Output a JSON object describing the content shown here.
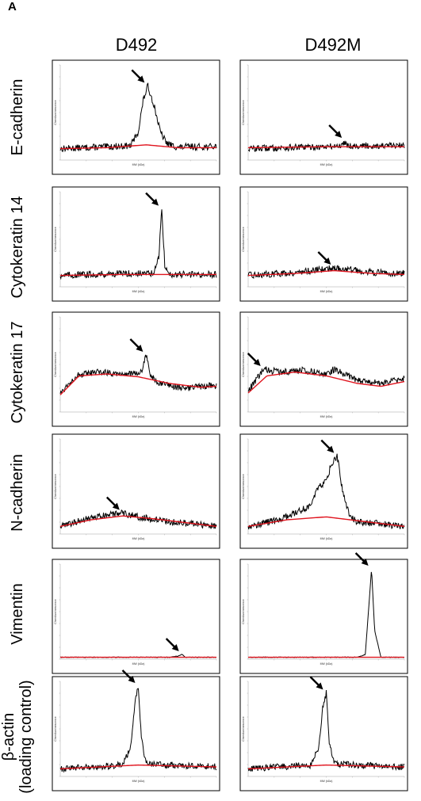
{
  "panel_label": "A",
  "columns": [
    "D492",
    "D492M"
  ],
  "rows": [
    {
      "label": "E-cadherin"
    },
    {
      "label": "Cytokeratin 14"
    },
    {
      "label": "Cytokeratin 17"
    },
    {
      "label": "N-cadherin"
    },
    {
      "label": "Vimentin"
    },
    {
      "label": "β-actin\n(loading control)"
    }
  ],
  "colors": {
    "trace": "#000000",
    "baseline": "#e0141e",
    "frame": "#000000"
  },
  "chart_data": [
    {
      "type": "line",
      "row": "E-cadherin",
      "column": "D492",
      "xlabel": "MW (kDa)",
      "ylabel": "Chemiluminescence",
      "series": [
        {
          "x": [
            0,
            0.3,
            0.45,
            0.5,
            0.53,
            0.56,
            0.6,
            0.64,
            0.68,
            0.72,
            0.76,
            0.8,
            1.0
          ],
          "values": [
            0.12,
            0.14,
            0.15,
            0.3,
            0.62,
            0.78,
            0.58,
            0.3,
            0.18,
            0.15,
            0.13,
            0.14,
            0.14
          ]
        },
        {
          "x": [
            0,
            0.3,
            0.55,
            0.75,
            1.0
          ],
          "values": [
            0.12,
            0.13,
            0.16,
            0.13,
            0.13
          ]
        }
      ],
      "annotations": [
        "arrow at peak"
      ]
    },
    {
      "type": "line",
      "row": "E-cadherin",
      "column": "D492M",
      "xlabel": "MW (kDa)",
      "ylabel": "Chemiluminescence",
      "series": [
        {
          "x": [
            0,
            0.5,
            0.6,
            0.62,
            0.64,
            1.0
          ],
          "values": [
            0.12,
            0.14,
            0.15,
            0.2,
            0.15,
            0.15
          ]
        },
        {
          "x": [
            0,
            0.5,
            1.0
          ],
          "values": [
            0.13,
            0.14,
            0.14
          ]
        }
      ],
      "annotations": [
        "arrow"
      ]
    },
    {
      "type": "line",
      "row": "Cytokeratin 14",
      "column": "D492",
      "xlabel": "MW (kDa)",
      "ylabel": "Chemiluminescence",
      "series": [
        {
          "x": [
            0,
            0.4,
            0.6,
            0.63,
            0.65,
            0.67,
            0.7,
            1.0
          ],
          "values": [
            0.12,
            0.14,
            0.14,
            0.3,
            0.82,
            0.2,
            0.13,
            0.13
          ]
        },
        {
          "x": [
            0,
            0.4,
            1.0
          ],
          "values": [
            0.12,
            0.13,
            0.13
          ]
        }
      ],
      "annotations": [
        "arrow at peak"
      ]
    },
    {
      "type": "line",
      "row": "Cytokeratin 14",
      "column": "D492M",
      "xlabel": "MW (kDa)",
      "ylabel": "Chemiluminescence",
      "series": [
        {
          "x": [
            0,
            0.3,
            0.55,
            0.8,
            1.0
          ],
          "values": [
            0.12,
            0.15,
            0.2,
            0.15,
            0.14
          ]
        },
        {
          "x": [
            0,
            0.3,
            0.55,
            0.8,
            1.0
          ],
          "values": [
            0.12,
            0.14,
            0.17,
            0.14,
            0.13
          ]
        }
      ],
      "annotations": [
        "arrow"
      ]
    },
    {
      "type": "line",
      "row": "Cytokeratin 17",
      "column": "D492",
      "xlabel": "MW (kDa)",
      "ylabel": "Chemiluminescence",
      "series": [
        {
          "x": [
            0,
            0.1,
            0.25,
            0.45,
            0.52,
            0.55,
            0.58,
            0.62,
            0.8,
            1.0
          ],
          "values": [
            0.2,
            0.38,
            0.42,
            0.4,
            0.42,
            0.6,
            0.38,
            0.3,
            0.25,
            0.28
          ]
        },
        {
          "x": [
            0,
            0.12,
            0.3,
            0.5,
            0.7,
            0.9,
            1.0
          ],
          "values": [
            0.18,
            0.38,
            0.4,
            0.37,
            0.3,
            0.26,
            0.27
          ]
        }
      ],
      "annotations": [
        "arrow at peak"
      ]
    },
    {
      "type": "line",
      "row": "Cytokeratin 17",
      "column": "D492M",
      "xlabel": "MW (kDa)",
      "ylabel": "Chemiluminescence",
      "series": [
        {
          "x": [
            0,
            0.1,
            0.2,
            0.35,
            0.5,
            0.55,
            0.7,
            0.85,
            1.0
          ],
          "values": [
            0.22,
            0.45,
            0.42,
            0.44,
            0.4,
            0.45,
            0.33,
            0.3,
            0.35
          ]
        },
        {
          "x": [
            0,
            0.12,
            0.3,
            0.5,
            0.7,
            0.85,
            1.0
          ],
          "values": [
            0.2,
            0.38,
            0.42,
            0.38,
            0.3,
            0.27,
            0.32
          ]
        }
      ],
      "annotations": [
        "arrow"
      ]
    },
    {
      "type": "line",
      "row": "N-cadherin",
      "column": "D492",
      "xlabel": "MW (kDa)",
      "ylabel": "Chemiluminescence",
      "series": [
        {
          "x": [
            0,
            0.15,
            0.3,
            0.4,
            0.5,
            0.7,
            1.0
          ],
          "values": [
            0.08,
            0.15,
            0.2,
            0.22,
            0.18,
            0.13,
            0.08
          ]
        },
        {
          "x": [
            0,
            0.2,
            0.4,
            0.6,
            0.8,
            1.0
          ],
          "values": [
            0.08,
            0.15,
            0.19,
            0.16,
            0.12,
            0.08
          ]
        }
      ],
      "annotations": [
        "arrow"
      ]
    },
    {
      "type": "line",
      "row": "N-cadherin",
      "column": "D492M",
      "xlabel": "MW (kDa)",
      "ylabel": "Chemiluminescence",
      "series": [
        {
          "x": [
            0,
            0.2,
            0.3,
            0.4,
            0.45,
            0.5,
            0.53,
            0.57,
            0.6,
            0.65,
            0.7,
            1.0
          ],
          "values": [
            0.08,
            0.15,
            0.22,
            0.3,
            0.5,
            0.55,
            0.72,
            0.82,
            0.5,
            0.18,
            0.13,
            0.08
          ]
        },
        {
          "x": [
            0,
            0.25,
            0.5,
            0.7,
            1.0
          ],
          "values": [
            0.08,
            0.15,
            0.18,
            0.14,
            0.08
          ]
        }
      ],
      "annotations": [
        "arrow at peak"
      ]
    },
    {
      "type": "line",
      "row": "Vimentin",
      "column": "D492",
      "xlabel": "MW (kDa)",
      "ylabel": "Chemiluminescence",
      "series": [
        {
          "x": [
            0,
            0.7,
            0.75,
            0.78,
            0.8,
            1.0
          ],
          "values": [
            0.02,
            0.02,
            0.03,
            0.05,
            0.02,
            0.02
          ]
        },
        {
          "x": [
            0,
            1.0
          ],
          "values": [
            0.02,
            0.02
          ]
        }
      ],
      "annotations": [
        "arrow"
      ]
    },
    {
      "type": "line",
      "row": "Vimentin",
      "column": "D492M",
      "xlabel": "MW (kDa)",
      "ylabel": "Chemiluminescence",
      "series": [
        {
          "x": [
            0,
            0.7,
            0.75,
            0.77,
            0.79,
            0.81,
            0.85,
            1.0
          ],
          "values": [
            0.02,
            0.02,
            0.05,
            0.5,
            0.95,
            0.3,
            0.02,
            0.02
          ]
        },
        {
          "x": [
            0,
            1.0
          ],
          "values": [
            0.02,
            0.02
          ]
        }
      ],
      "annotations": [
        "arrow at peak"
      ]
    },
    {
      "type": "line",
      "row": "β-actin (loading control)",
      "column": "D492",
      "xlabel": "MW (kDa)",
      "ylabel": "Chemiluminescence",
      "series": [
        {
          "x": [
            0,
            0.4,
            0.45,
            0.48,
            0.5,
            0.52,
            0.55,
            1.0
          ],
          "values": [
            0.08,
            0.12,
            0.3,
            0.82,
            0.95,
            0.4,
            0.13,
            0.1
          ]
        },
        {
          "x": [
            0,
            0.5,
            1.0
          ],
          "values": [
            0.08,
            0.12,
            0.1
          ]
        }
      ],
      "annotations": [
        "arrow at peak"
      ]
    },
    {
      "type": "line",
      "row": "β-actin (loading control)",
      "column": "D492M",
      "xlabel": "MW (kDa)",
      "ylabel": "Chemiluminescence",
      "series": [
        {
          "x": [
            0,
            0.4,
            0.45,
            0.48,
            0.5,
            0.52,
            0.55,
            1.0
          ],
          "values": [
            0.08,
            0.12,
            0.3,
            0.75,
            0.88,
            0.35,
            0.13,
            0.1
          ]
        },
        {
          "x": [
            0,
            0.5,
            1.0
          ],
          "values": [
            0.08,
            0.12,
            0.1
          ]
        }
      ],
      "annotations": [
        "arrow at peak"
      ]
    }
  ]
}
